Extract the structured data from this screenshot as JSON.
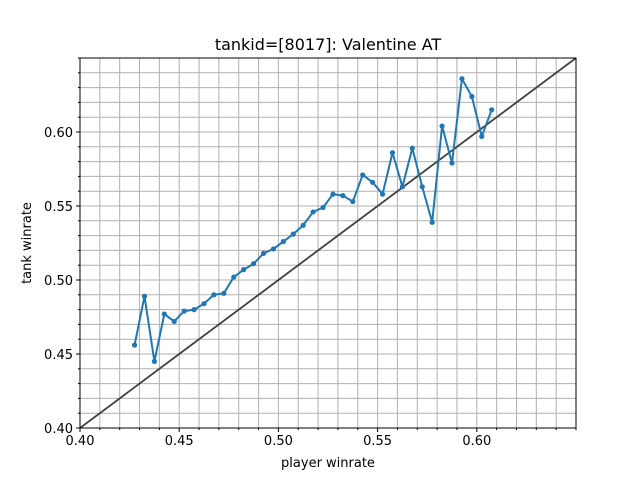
{
  "chart_data": {
    "type": "line",
    "title": "tankid=[8017]: Valentine AT",
    "xlabel": "player winrate",
    "ylabel": "tank winrate",
    "xlim": [
      0.4,
      0.65
    ],
    "ylim": [
      0.4,
      0.65
    ],
    "x_major_ticks": [
      0.4,
      0.45,
      0.5,
      0.55,
      0.6
    ],
    "x_tick_labels": [
      "0.40",
      "0.45",
      "0.50",
      "0.55",
      "0.60"
    ],
    "y_major_ticks": [
      0.4,
      0.45,
      0.5,
      0.55,
      0.6
    ],
    "y_tick_labels": [
      "0.40",
      "0.45",
      "0.50",
      "0.55",
      "0.60"
    ],
    "minor_tick_step": 0.01,
    "grid": true,
    "series": [
      {
        "color": "#1f77b4",
        "marker": "dot",
        "x": [
          0.4275,
          0.4325,
          0.4375,
          0.4425,
          0.4475,
          0.4525,
          0.4575,
          0.4625,
          0.4675,
          0.4725,
          0.4775,
          0.4825,
          0.4875,
          0.4925,
          0.4975,
          0.5025,
          0.5075,
          0.5125,
          0.5175,
          0.5225,
          0.5275,
          0.5325,
          0.5375,
          0.5425,
          0.5475,
          0.5525,
          0.5575,
          0.5625,
          0.5675,
          0.5725,
          0.5775,
          0.5825,
          0.5875,
          0.5925,
          0.5975,
          0.6025,
          0.6075
        ],
        "y": [
          0.456,
          0.489,
          0.445,
          0.477,
          0.472,
          0.479,
          0.48,
          0.484,
          0.49,
          0.491,
          0.502,
          0.507,
          0.511,
          0.518,
          0.521,
          0.526,
          0.531,
          0.537,
          0.546,
          0.549,
          0.558,
          0.557,
          0.553,
          0.571,
          0.566,
          0.558,
          0.586,
          0.563,
          0.589,
          0.563,
          0.539,
          0.604,
          0.579,
          0.636,
          0.624,
          0.597,
          0.615
        ]
      }
    ],
    "reference_line": {
      "type": "identity",
      "color": "#404040"
    }
  }
}
